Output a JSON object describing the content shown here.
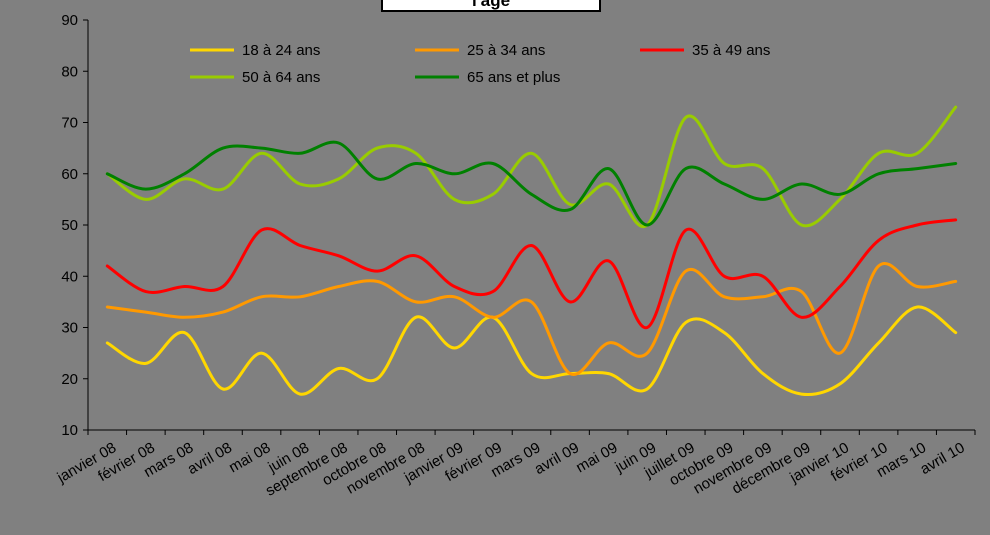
{
  "chart_data": {
    "type": "line",
    "title": "l'âge",
    "ylim": [
      10,
      90
    ],
    "yticks": [
      10,
      20,
      30,
      40,
      50,
      60,
      70,
      80,
      90
    ],
    "grid": false,
    "legend": "top",
    "categories": [
      "janvier 08",
      "février 08",
      "mars 08",
      "avril 08",
      "mai 08",
      "juin 08",
      "septembre 08",
      "octobre 08",
      "novembre 08",
      "janvier 09",
      "février 09",
      "mars 09",
      "avril 09",
      "mai 09",
      "juin 09",
      "juillet 09",
      "octobre 09",
      "novembre 09",
      "décembre 09",
      "janvier 10",
      "février 10",
      "mars 10",
      "avril 10"
    ],
    "series": [
      {
        "name": "18 à 24 ans",
        "color": "#ffd700",
        "values": [
          27,
          23,
          29,
          18,
          25,
          17,
          22,
          20,
          32,
          26,
          32,
          21,
          21,
          21,
          18,
          31,
          29,
          21,
          17,
          19,
          27,
          34,
          29
        ]
      },
      {
        "name": "25 à 34 ans",
        "color": "#ff9900",
        "values": [
          34,
          33,
          32,
          33,
          36,
          36,
          38,
          39,
          35,
          36,
          32,
          35,
          21,
          27,
          25,
          41,
          36,
          36,
          37,
          25,
          42,
          38,
          39
        ]
      },
      {
        "name": "35 à 49 ans",
        "color": "#ff0000",
        "values": [
          42,
          37,
          38,
          38,
          49,
          46,
          44,
          41,
          44,
          38,
          37,
          46,
          35,
          43,
          30,
          49,
          40,
          40,
          32,
          38,
          47,
          50,
          51
        ]
      },
      {
        "name": "50 à 64 ans",
        "color": "#99cc00",
        "values": [
          60,
          55,
          59,
          57,
          64,
          58,
          59,
          65,
          64,
          55,
          56,
          64,
          54,
          58,
          50,
          71,
          62,
          61,
          50,
          55,
          64,
          64,
          73
        ]
      },
      {
        "name": "65 ans et plus",
        "color": "#008000",
        "values": [
          60,
          57,
          60,
          65,
          65,
          64,
          66,
          59,
          62,
          60,
          62,
          56,
          53,
          61,
          50,
          61,
          58,
          55,
          58,
          56,
          60,
          61,
          62
        ]
      }
    ]
  }
}
